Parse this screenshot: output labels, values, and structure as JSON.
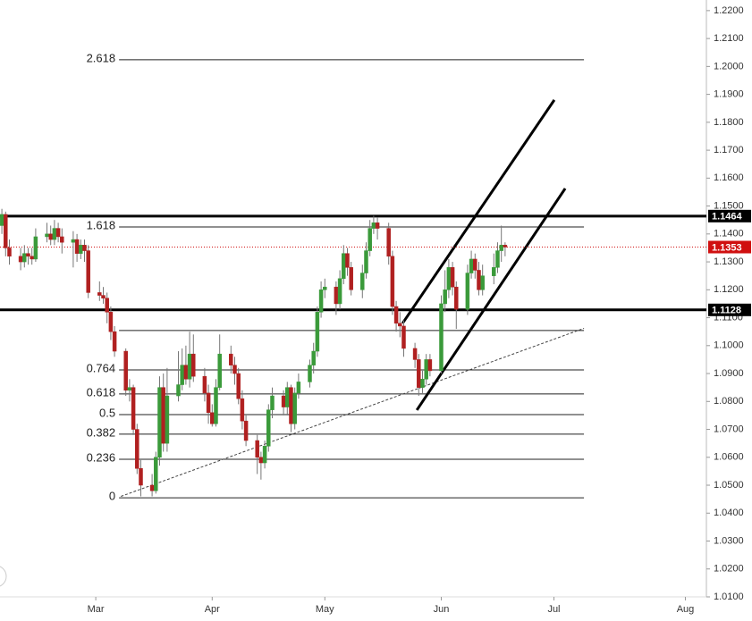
{
  "chart_data": {
    "type": "candlestick",
    "x": [
      -25,
      -24,
      -23,
      -20,
      -19,
      -18,
      -17,
      -16,
      -13,
      -12,
      -11,
      -10,
      -9,
      -6,
      -5,
      -4,
      -3,
      -2,
      1,
      2,
      3,
      4,
      5,
      8,
      9,
      10,
      11,
      12,
      15,
      16,
      17,
      18,
      19,
      22,
      23,
      24,
      25,
      26,
      29,
      30,
      31,
      32,
      33,
      36,
      37,
      38,
      39,
      40,
      43,
      44,
      45,
      46,
      47,
      50,
      51,
      52,
      53,
      54,
      57,
      58,
      59,
      60,
      61,
      64,
      65,
      66,
      67,
      68,
      71,
      72,
      73,
      74,
      75,
      78,
      79,
      80,
      81,
      82,
      85,
      86,
      87,
      88,
      89,
      92,
      93,
      94,
      95,
      96,
      99,
      100,
      101,
      102,
      103,
      106,
      107,
      108,
      109
    ],
    "open": [
      1.143,
      1.147,
      1.135,
      1.132,
      1.13,
      1.133,
      1.132,
      1.131,
      1.139,
      1.14,
      1.138,
      1.142,
      1.139,
      1.137,
      1.138,
      1.133,
      1.136,
      1.134,
      1.119,
      1.118,
      1.117,
      1.112,
      1.105,
      1.098,
      1.084,
      1.085,
      1.07,
      1.056,
      1.05,
      1.048,
      1.06,
      1.085,
      1.065,
      1.082,
      1.086,
      1.093,
      1.088,
      1.097,
      1.089,
      1.083,
      1.076,
      1.072,
      1.085,
      1.097,
      1.093,
      1.09,
      1.081,
      1.073,
      1.066,
      1.06,
      1.058,
      1.064,
      1.077,
      1.082,
      1.078,
      1.085,
      1.072,
      1.083,
      1.087,
      1.093,
      1.098,
      1.112,
      1.12,
      1.121,
      1.115,
      1.124,
      1.133,
      1.128,
      1.12,
      1.126,
      1.134,
      1.142,
      1.144,
      1.142,
      1.132,
      1.114,
      1.108,
      1.107,
      1.099,
      1.095,
      1.085,
      1.088,
      1.095,
      1.091,
      1.115,
      1.12,
      1.128,
      1.121,
      1.113,
      1.126,
      1.131,
      1.127,
      1.12,
      1.125,
      1.128,
      1.134,
      1.136
    ],
    "high": [
      1.149,
      1.148,
      1.138,
      1.135,
      1.136,
      1.135,
      1.135,
      1.142,
      1.144,
      1.143,
      1.145,
      1.144,
      1.142,
      1.141,
      1.14,
      1.138,
      1.138,
      1.136,
      1.123,
      1.121,
      1.119,
      1.114,
      1.107,
      1.099,
      1.088,
      1.086,
      1.072,
      1.059,
      1.054,
      1.062,
      1.089,
      1.09,
      1.092,
      1.098,
      1.099,
      1.1,
      1.105,
      1.104,
      1.092,
      1.086,
      1.079,
      1.088,
      1.104,
      1.1,
      1.096,
      1.092,
      1.084,
      1.075,
      1.068,
      1.062,
      1.066,
      1.079,
      1.085,
      1.084,
      1.087,
      1.086,
      1.085,
      1.09,
      1.095,
      1.101,
      1.114,
      1.123,
      1.124,
      1.123,
      1.127,
      1.136,
      1.135,
      1.13,
      1.129,
      1.137,
      1.145,
      1.1465,
      1.146,
      1.144,
      1.134,
      1.116,
      1.112,
      1.109,
      1.101,
      1.097,
      1.091,
      1.097,
      1.097,
      1.118,
      1.127,
      1.131,
      1.13,
      1.123,
      1.129,
      1.134,
      1.133,
      1.13,
      1.129,
      1.133,
      1.137,
      1.143,
      1.137
    ],
    "low": [
      1.14,
      1.132,
      1.129,
      1.127,
      1.128,
      1.129,
      1.129,
      1.13,
      1.137,
      1.136,
      1.136,
      1.137,
      1.133,
      1.128,
      1.13,
      1.131,
      1.13,
      1.117,
      1.116,
      1.115,
      1.108,
      1.102,
      1.096,
      1.082,
      1.08,
      1.068,
      1.054,
      1.046,
      1.046,
      1.047,
      1.057,
      1.062,
      1.062,
      1.08,
      1.084,
      1.086,
      1.085,
      1.087,
      1.08,
      1.072,
      1.071,
      1.071,
      1.084,
      1.09,
      1.086,
      1.079,
      1.07,
      1.064,
      1.054,
      1.052,
      1.056,
      1.062,
      1.074,
      1.075,
      1.075,
      1.069,
      1.07,
      1.081,
      1.085,
      1.09,
      1.096,
      1.11,
      1.117,
      1.111,
      1.113,
      1.122,
      1.125,
      1.118,
      1.117,
      1.124,
      1.132,
      1.14,
      1.138,
      1.129,
      1.111,
      1.105,
      1.103,
      1.096,
      1.092,
      1.082,
      1.083,
      1.086,
      1.089,
      1.09,
      1.112,
      1.117,
      1.118,
      1.106,
      1.111,
      1.124,
      1.124,
      1.118,
      1.118,
      1.122,
      1.126,
      1.13,
      1.132
    ],
    "close": [
      1.147,
      1.135,
      1.132,
      1.13,
      1.133,
      1.132,
      1.131,
      1.139,
      1.14,
      1.138,
      1.142,
      1.139,
      1.137,
      1.138,
      1.133,
      1.136,
      1.134,
      1.119,
      1.118,
      1.117,
      1.112,
      1.105,
      1.098,
      1.084,
      1.085,
      1.07,
      1.056,
      1.05,
      1.048,
      1.06,
      1.085,
      1.065,
      1.082,
      1.086,
      1.093,
      1.088,
      1.097,
      1.089,
      1.083,
      1.076,
      1.072,
      1.085,
      1.097,
      1.093,
      1.09,
      1.081,
      1.073,
      1.066,
      1.06,
      1.058,
      1.064,
      1.077,
      1.082,
      1.078,
      1.085,
      1.072,
      1.083,
      1.087,
      1.093,
      1.098,
      1.112,
      1.12,
      1.121,
      1.115,
      1.124,
      1.133,
      1.128,
      1.12,
      1.126,
      1.134,
      1.142,
      1.144,
      1.142,
      1.132,
      1.114,
      1.108,
      1.107,
      1.099,
      1.095,
      1.085,
      1.088,
      1.095,
      1.091,
      1.115,
      1.12,
      1.128,
      1.121,
      1.113,
      1.126,
      1.131,
      1.127,
      1.12,
      1.125,
      1.128,
      1.134,
      1.136,
      1.1353
    ],
    "up_color": "#3a9a3a",
    "down_color": "#b02020",
    "xlim": [
      -25.5,
      162.6
    ],
    "xticks": [
      {
        "value": 0,
        "label": "Mar"
      },
      {
        "value": 31,
        "label": "Apr"
      },
      {
        "value": 61,
        "label": "May"
      },
      {
        "value": 92,
        "label": "Jun"
      },
      {
        "value": 122,
        "label": "Jul"
      },
      {
        "value": 157,
        "label": "Aug"
      }
    ],
    "ylim": [
      1.01,
      1.2238
    ],
    "yticks": [
      {
        "value": 1.01,
        "label": "1.0100"
      },
      {
        "value": 1.02,
        "label": "1.0200"
      },
      {
        "value": 1.03,
        "label": "1.0300"
      },
      {
        "value": 1.04,
        "label": "1.0400"
      },
      {
        "value": 1.05,
        "label": "1.0500"
      },
      {
        "value": 1.06,
        "label": "1.0600"
      },
      {
        "value": 1.07,
        "label": "1.0700"
      },
      {
        "value": 1.08,
        "label": "1.0800"
      },
      {
        "value": 1.09,
        "label": "1.0900"
      },
      {
        "value": 1.1,
        "label": "1.1000"
      },
      {
        "value": 1.11,
        "label": "1.1100"
      },
      {
        "value": 1.12,
        "label": "1.1200"
      },
      {
        "value": 1.13,
        "label": "1.1300"
      },
      {
        "value": 1.14,
        "label": "1.1400"
      },
      {
        "value": 1.15,
        "label": "1.1500"
      },
      {
        "value": 1.16,
        "label": "1.1600"
      },
      {
        "value": 1.17,
        "label": "1.1700"
      },
      {
        "value": 1.18,
        "label": "1.1800"
      },
      {
        "value": 1.19,
        "label": "1.1900"
      },
      {
        "value": 1.2,
        "label": "1.2000"
      },
      {
        "value": 1.21,
        "label": "1.2100"
      },
      {
        "value": 1.22,
        "label": "1.2200"
      }
    ],
    "fib_range": [
      6.2,
      130
    ],
    "fib_levels": [
      {
        "ratio": 2.618,
        "value": 1.2024
      },
      {
        "ratio": 1.618,
        "value": 1.1425
      },
      {
        "ratio": null,
        "value": 1.1054
      },
      {
        "ratio": 0.764,
        "value": 1.0913
      },
      {
        "ratio": 0.618,
        "value": 1.0827
      },
      {
        "ratio": 0.5,
        "value": 1.0753
      },
      {
        "ratio": 0.382,
        "value": 1.0683
      },
      {
        "ratio": 0.236,
        "value": 1.0593
      },
      {
        "ratio": 0,
        "value": 1.0455
      }
    ],
    "horizontal_lines": [
      {
        "value": 1.1464
      },
      {
        "value": 1.1128
      }
    ],
    "price_line": {
      "value": 1.1353,
      "color": "#d01010"
    },
    "trend_lines": [
      {
        "x": [
          6.7,
          130
        ],
        "y": [
          1.046,
          1.1062
        ],
        "style": "dashed"
      },
      {
        "x": [
          81.7,
          122.1
        ],
        "y": [
          1.108,
          1.188
        ],
        "style": "solid"
      },
      {
        "x": [
          85.5,
          125
        ],
        "y": [
          1.0769,
          1.1563
        ],
        "style": "solid"
      }
    ]
  }
}
